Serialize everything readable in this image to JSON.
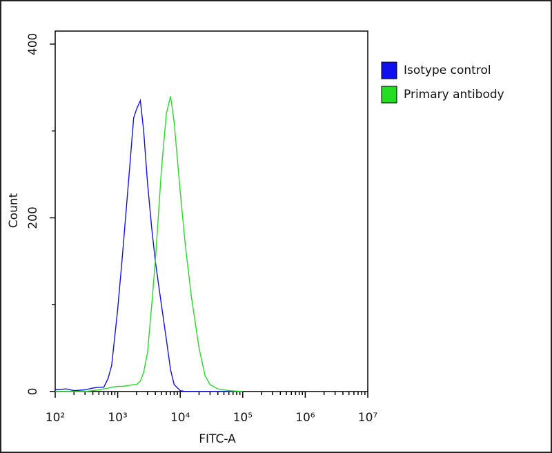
{
  "chart_data": {
    "type": "line",
    "xlabel": "FITC-A",
    "ylabel": "Count",
    "xscale": "log",
    "x": [
      100,
      150,
      200,
      300,
      400,
      500,
      600,
      700,
      800,
      1000,
      1200,
      1500,
      1800,
      2000,
      2300,
      2600,
      3000,
      3500,
      4000,
      5000,
      6000,
      7000,
      8000,
      10000,
      12000,
      15000,
      20000,
      25000,
      30000,
      40000,
      60000,
      100000
    ],
    "series": [
      {
        "name": "Isotype control",
        "color": "#1010ee",
        "values": [
          2,
          3,
          1,
          2,
          4,
          5,
          5,
          15,
          30,
          95,
          160,
          245,
          315,
          325,
          335,
          300,
          240,
          188,
          150,
          100,
          60,
          25,
          8,
          1,
          0,
          0,
          0,
          0,
          0,
          0,
          0,
          0
        ]
      },
      {
        "name": "Primary antibody",
        "color": "#22dd22",
        "values": [
          0,
          0,
          0,
          0,
          1,
          2,
          3,
          4,
          5,
          6,
          6,
          7,
          8,
          8,
          12,
          22,
          45,
          100,
          150,
          255,
          320,
          340,
          310,
          230,
          170,
          110,
          50,
          18,
          8,
          3,
          1,
          0
        ]
      }
    ],
    "xlim": [
      100,
      10000000
    ],
    "xticks": [
      {
        "value": 100,
        "label": "10²"
      },
      {
        "value": 1000,
        "label": "10³"
      },
      {
        "value": 10000,
        "label": "10⁴"
      },
      {
        "value": 100000,
        "label": "10⁵"
      },
      {
        "value": 1000000,
        "label": "10⁶"
      },
      {
        "value": 10000000,
        "label": "10⁷"
      }
    ],
    "xminorticks": [
      200,
      300,
      400,
      500,
      600,
      700,
      800,
      900,
      2000,
      3000,
      4000,
      5000,
      6000,
      7000,
      8000,
      9000,
      20000,
      30000,
      40000,
      50000,
      60000,
      70000,
      80000,
      90000,
      200000,
      300000,
      400000,
      500000,
      600000,
      700000,
      800000,
      900000,
      2000000,
      3000000,
      4000000,
      5000000,
      6000000,
      7000000,
      8000000,
      9000000
    ],
    "ylim": [
      0,
      415
    ],
    "yticks": [
      0,
      200,
      400
    ],
    "yminorticks": [
      100,
      300
    ],
    "legend": "right"
  }
}
